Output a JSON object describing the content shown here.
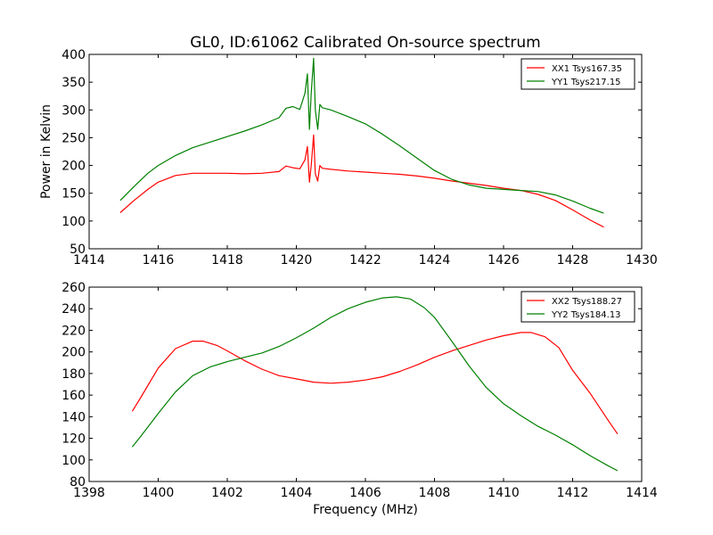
{
  "title": "GL0, ID:61062 Calibrated On-source spectrum",
  "ylabel": "Power in Kelvin",
  "xlabel": "Frequency (MHz)",
  "colors": {
    "red": "#ff0000",
    "green": "#008000"
  },
  "chart_data": [
    {
      "type": "line",
      "xlim": [
        1414,
        1430
      ],
      "ylim": [
        50,
        400
      ],
      "xticks": [
        1414,
        1416,
        1418,
        1420,
        1422,
        1424,
        1426,
        1428,
        1430
      ],
      "yticks": [
        50,
        100,
        150,
        200,
        250,
        300,
        350,
        400
      ],
      "legend_position": "upper-right",
      "series": [
        {
          "name": "XX1 Tsys167.35",
          "color": "#ff0000",
          "x": [
            1414.9,
            1415.3,
            1415.7,
            1416.0,
            1416.5,
            1417.0,
            1417.5,
            1418.0,
            1418.5,
            1419.0,
            1419.5,
            1419.7,
            1419.9,
            1420.1,
            1420.25,
            1420.32,
            1420.38,
            1420.43,
            1420.5,
            1420.55,
            1420.62,
            1420.68,
            1420.75,
            1421.0,
            1421.5,
            1422.0,
            1422.5,
            1423.0,
            1423.5,
            1424.0,
            1424.5,
            1425.0,
            1425.5,
            1426.0,
            1426.5,
            1427.0,
            1427.5,
            1428.0,
            1428.5,
            1428.9
          ],
          "y": [
            115,
            137,
            157,
            170,
            182,
            186,
            186,
            186,
            185,
            186,
            189,
            199,
            196,
            194,
            210,
            234,
            170,
            200,
            255,
            185,
            172,
            200,
            195,
            193,
            190,
            188,
            186,
            184,
            181,
            177,
            172,
            168,
            164,
            159,
            155,
            148,
            137,
            120,
            102,
            89
          ]
        },
        {
          "name": "YY1 Tsys217.15",
          "color": "#008000",
          "x": [
            1414.9,
            1415.3,
            1415.7,
            1416.0,
            1416.5,
            1417.0,
            1417.5,
            1418.0,
            1418.5,
            1419.0,
            1419.5,
            1419.7,
            1419.9,
            1420.1,
            1420.25,
            1420.32,
            1420.38,
            1420.43,
            1420.5,
            1420.55,
            1420.62,
            1420.68,
            1420.75,
            1421.0,
            1421.5,
            1422.0,
            1422.5,
            1423.0,
            1423.5,
            1424.0,
            1424.5,
            1425.0,
            1425.5,
            1426.0,
            1426.5,
            1427.0,
            1427.5,
            1428.0,
            1428.5,
            1428.9
          ],
          "y": [
            137,
            162,
            186,
            200,
            218,
            232,
            242,
            252,
            262,
            273,
            286,
            303,
            306,
            301,
            330,
            365,
            265,
            330,
            393,
            300,
            265,
            310,
            304,
            300,
            288,
            275,
            256,
            235,
            213,
            191,
            175,
            165,
            159,
            157,
            155,
            153,
            147,
            136,
            123,
            114
          ]
        }
      ]
    },
    {
      "type": "line",
      "xlim": [
        1398,
        1414
      ],
      "ylim": [
        80,
        260
      ],
      "xticks": [
        1398,
        1400,
        1402,
        1404,
        1406,
        1408,
        1410,
        1412,
        1414
      ],
      "yticks": [
        80,
        100,
        120,
        140,
        160,
        180,
        200,
        220,
        240,
        260
      ],
      "legend_position": "upper-right",
      "series": [
        {
          "name": "XX2 Tsys188.27",
          "color": "#ff0000",
          "x": [
            1399.25,
            1399.5,
            1400.0,
            1400.5,
            1401.0,
            1401.3,
            1401.7,
            1402.0,
            1402.5,
            1403.0,
            1403.5,
            1404.0,
            1404.5,
            1405.0,
            1405.5,
            1406.0,
            1406.5,
            1407.0,
            1407.5,
            1408.0,
            1408.5,
            1409.0,
            1409.5,
            1410.0,
            1410.5,
            1410.8,
            1411.2,
            1411.6,
            1412.0,
            1412.5,
            1413.0,
            1413.3
          ],
          "y": [
            145,
            158,
            185,
            203,
            210,
            210,
            206,
            201,
            192,
            184,
            178,
            175,
            172,
            171,
            172,
            174,
            177,
            182,
            188,
            195,
            201,
            206,
            211,
            215,
            218,
            218,
            214,
            204,
            183,
            162,
            138,
            124
          ]
        },
        {
          "name": "YY2 Tsys184.13",
          "color": "#008000",
          "x": [
            1399.25,
            1399.5,
            1400.0,
            1400.5,
            1401.0,
            1401.5,
            1402.0,
            1402.5,
            1403.0,
            1403.5,
            1404.0,
            1404.5,
            1405.0,
            1405.5,
            1406.0,
            1406.5,
            1406.9,
            1407.3,
            1407.7,
            1408.0,
            1408.5,
            1409.0,
            1409.5,
            1410.0,
            1410.5,
            1411.0,
            1411.5,
            1412.0,
            1412.5,
            1413.0,
            1413.3
          ],
          "y": [
            112,
            122,
            143,
            163,
            178,
            186,
            191,
            195,
            199,
            205,
            213,
            222,
            232,
            240,
            246,
            250,
            251,
            249,
            241,
            232,
            210,
            187,
            167,
            152,
            141,
            131,
            123,
            114,
            104,
            95,
            90
          ]
        }
      ]
    }
  ]
}
